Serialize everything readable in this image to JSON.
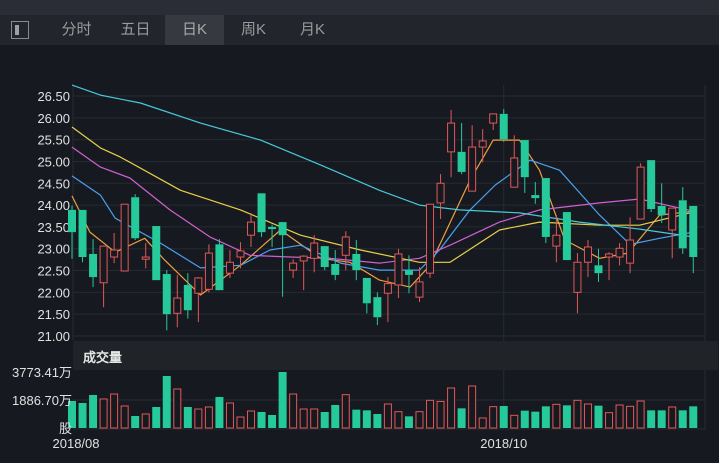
{
  "tabs": [
    {
      "label": "分时",
      "active": false
    },
    {
      "label": "五日",
      "active": false
    },
    {
      "label": "日K",
      "active": true
    },
    {
      "label": "周K",
      "active": false
    },
    {
      "label": "月K",
      "active": false
    }
  ],
  "panel_toggle_icon": "sidebar-toggle-icon",
  "volume_panel": {
    "title": "成交量",
    "max_label": "3773.41万",
    "mid_label": "1886.70万",
    "unit_label": "股"
  },
  "colors": {
    "up": "#e05858",
    "down": "#26c99a",
    "ma5": "#f0a040",
    "ma10": "#4aa0f0",
    "ma20": "#d060d0",
    "ma30": "#e8d048",
    "ma60": "#48c8d8",
    "bg": "#161a20",
    "grid": "#252a32"
  },
  "chart_data": {
    "type": "candlestick",
    "price_axis": {
      "ylim": [
        21.0,
        26.5
      ],
      "ticks": [
        "26.50",
        "26.00",
        "25.50",
        "25.00",
        "24.50",
        "24.00",
        "23.50",
        "23.00",
        "22.50",
        "22.00",
        "21.50",
        "21.00"
      ]
    },
    "x_labels": [
      {
        "label": "2018/08",
        "index": 0
      },
      {
        "label": "2018/10",
        "index": 41
      }
    ],
    "candles": [
      [
        23.89,
        23.99,
        22.77,
        23.38
      ],
      [
        23.89,
        23.89,
        22.69,
        22.81
      ],
      [
        22.88,
        23.22,
        22.12,
        22.35
      ],
      [
        22.22,
        23.06,
        21.66,
        23.06
      ],
      [
        22.81,
        23.36,
        22.67,
        22.97
      ],
      [
        22.49,
        24.02,
        22.49,
        24.02
      ],
      [
        24.18,
        24.25,
        23.2,
        23.24
      ],
      [
        22.76,
        23.13,
        22.55,
        22.81
      ],
      [
        23.52,
        23.52,
        22.28,
        22.28
      ],
      [
        22.42,
        22.51,
        21.13,
        21.5
      ],
      [
        21.52,
        22.4,
        21.2,
        21.87
      ],
      [
        22.17,
        22.44,
        21.4,
        21.59
      ],
      [
        21.98,
        22.35,
        21.32,
        22.33
      ],
      [
        22.07,
        23.1,
        22.0,
        22.9
      ],
      [
        23.1,
        23.22,
        22.05,
        22.05
      ],
      [
        22.44,
        22.97,
        22.33,
        22.69
      ],
      [
        22.81,
        23.15,
        22.55,
        22.95
      ],
      [
        23.31,
        23.82,
        23.04,
        23.61
      ],
      [
        24.27,
        24.27,
        23.27,
        23.38
      ],
      [
        23.5,
        23.55,
        23.04,
        23.45
      ],
      [
        23.61,
        23.61,
        21.9,
        23.31
      ],
      [
        22.51,
        22.76,
        22.33,
        22.67
      ],
      [
        22.72,
        22.85,
        22.05,
        22.83
      ],
      [
        22.78,
        23.31,
        22.46,
        23.13
      ],
      [
        23.06,
        23.06,
        22.51,
        22.58
      ],
      [
        22.65,
        22.97,
        22.28,
        22.4
      ],
      [
        22.85,
        23.4,
        22.51,
        23.27
      ],
      [
        22.88,
        23.2,
        22.28,
        22.51
      ],
      [
        22.33,
        22.33,
        21.52,
        21.75
      ],
      [
        21.89,
        22.0,
        21.25,
        21.43
      ],
      [
        21.98,
        22.35,
        21.32,
        22.2
      ],
      [
        22.17,
        23.0,
        21.87,
        22.88
      ],
      [
        22.51,
        22.85,
        21.98,
        22.4
      ],
      [
        21.89,
        22.58,
        21.78,
        22.24
      ],
      [
        22.44,
        24.02,
        22.33,
        24.02
      ],
      [
        24.05,
        24.71,
        23.68,
        24.5
      ],
      [
        25.22,
        26.18,
        24.64,
        25.88
      ],
      [
        25.22,
        25.88,
        24.71,
        24.76
      ],
      [
        24.32,
        25.83,
        24.32,
        25.33
      ],
      [
        25.33,
        25.74,
        24.98,
        25.47
      ],
      [
        25.88,
        26.09,
        25.72,
        26.09
      ],
      [
        26.09,
        26.2,
        25.45,
        25.51
      ],
      [
        24.41,
        25.6,
        24.41,
        25.08
      ],
      [
        25.49,
        25.49,
        24.28,
        24.64
      ],
      [
        24.23,
        24.53,
        24.03,
        24.16
      ],
      [
        24.62,
        24.62,
        23.13,
        23.27
      ],
      [
        23.06,
        23.77,
        22.69,
        23.31
      ],
      [
        23.84,
        23.84,
        22.74,
        22.74
      ],
      [
        22.0,
        22.9,
        21.52,
        22.69
      ],
      [
        22.69,
        23.2,
        22.35,
        23.04
      ],
      [
        22.62,
        23.0,
        22.24,
        22.44
      ],
      [
        22.81,
        22.92,
        22.28,
        22.88
      ],
      [
        22.81,
        23.13,
        22.62,
        23.01
      ],
      [
        22.67,
        23.72,
        22.44,
        23.2
      ],
      [
        23.68,
        24.96,
        23.68,
        24.87
      ],
      [
        25.03,
        25.03,
        23.84,
        23.91
      ],
      [
        23.98,
        24.5,
        23.59,
        23.77
      ],
      [
        23.43,
        23.93,
        22.78,
        23.93
      ],
      [
        24.11,
        24.41,
        22.88,
        23.01
      ],
      [
        23.98,
        23.98,
        22.44,
        22.81
      ]
    ],
    "candle_format": [
      "open",
      "high",
      "low",
      "close"
    ],
    "volume_unit": "万股",
    "volume_ylim": [
      0,
      3773.41
    ],
    "volumes": [
      1820,
      1685,
      2224,
      1955,
      2290,
      1483,
      809,
      944,
      1415,
      3505,
      2629,
      1415,
      1280,
      1415,
      2090,
      1685,
      741,
      1146,
      1078,
      876,
      3773,
      2290,
      1280,
      1280,
      1078,
      1550,
      2247,
      1236,
      1190,
      944,
      1618,
      1100,
      786,
      1100,
      1865,
      1790,
      2696,
      1326,
      2830,
      674,
      1438,
      1483,
      854,
      1168,
      1100,
      1460,
      1595,
      1528,
      1865,
      1618,
      1505,
      1034,
      1550,
      1460,
      1820,
      1190,
      1190,
      1415,
      1190,
      1460
    ],
    "moving_averages": [
      {
        "name": "MA5",
        "color_key": "ma5",
        "points": [
          [
            0,
            24.21
          ],
          [
            1.7,
            23.38
          ],
          [
            4.1,
            22.92
          ],
          [
            6.9,
            23.24
          ],
          [
            8.8,
            22.74
          ],
          [
            12.2,
            21.94
          ],
          [
            16,
            22.62
          ],
          [
            19.8,
            23.43
          ],
          [
            23.6,
            22.78
          ],
          [
            26.4,
            22.69
          ],
          [
            29.2,
            22.28
          ],
          [
            32.1,
            22.12
          ],
          [
            34,
            22.62
          ],
          [
            37.8,
            24.57
          ],
          [
            40,
            25.49
          ],
          [
            42.5,
            25.49
          ],
          [
            44.4,
            24.8
          ],
          [
            46.8,
            23.2
          ],
          [
            50.1,
            22.78
          ],
          [
            52.8,
            22.9
          ],
          [
            55.8,
            23.77
          ],
          [
            59,
            23.86
          ]
        ]
      },
      {
        "name": "MA10",
        "color_key": "ma10",
        "points": [
          [
            0,
            24.67
          ],
          [
            2.7,
            24.23
          ],
          [
            4.1,
            23.7
          ],
          [
            8.4,
            23.13
          ],
          [
            12.2,
            22.56
          ],
          [
            16,
            22.62
          ],
          [
            18.8,
            22.97
          ],
          [
            21.7,
            23.08
          ],
          [
            25.5,
            22.67
          ],
          [
            29.2,
            22.51
          ],
          [
            33,
            22.51
          ],
          [
            34.9,
            22.97
          ],
          [
            37.8,
            23.89
          ],
          [
            40.2,
            24.46
          ],
          [
            43.5,
            25.03
          ],
          [
            46.3,
            24.8
          ],
          [
            50.1,
            23.77
          ],
          [
            53,
            23.1
          ],
          [
            55.8,
            23.24
          ],
          [
            59,
            23.38
          ]
        ]
      },
      {
        "name": "MA20",
        "color_key": "ma20",
        "points": [
          [
            0,
            25.33
          ],
          [
            2.7,
            24.87
          ],
          [
            5.5,
            24.62
          ],
          [
            9.3,
            23.89
          ],
          [
            13.1,
            23.27
          ],
          [
            16.9,
            22.85
          ],
          [
            20.7,
            22.81
          ],
          [
            24.5,
            22.78
          ],
          [
            29.2,
            22.67
          ],
          [
            33,
            22.78
          ],
          [
            35.9,
            23.08
          ],
          [
            40.6,
            23.61
          ],
          [
            44.4,
            23.89
          ],
          [
            50.1,
            24.05
          ],
          [
            53.9,
            24.14
          ],
          [
            59,
            23.86
          ]
        ]
      },
      {
        "name": "MA30",
        "color_key": "ma30",
        "points": [
          [
            0,
            25.79
          ],
          [
            2.7,
            25.31
          ],
          [
            4.6,
            25.1
          ],
          [
            10.3,
            24.34
          ],
          [
            16,
            23.89
          ],
          [
            21.7,
            23.31
          ],
          [
            27.4,
            22.97
          ],
          [
            33,
            22.69
          ],
          [
            35.9,
            22.69
          ],
          [
            40.6,
            23.43
          ],
          [
            44.4,
            23.61
          ],
          [
            50.1,
            23.54
          ],
          [
            53.9,
            23.54
          ],
          [
            59,
            23.84
          ]
        ]
      },
      {
        "name": "MA60",
        "color_key": "ma60",
        "points": [
          [
            0,
            26.75
          ],
          [
            2.7,
            26.52
          ],
          [
            6.5,
            26.34
          ],
          [
            12.2,
            25.88
          ],
          [
            17.9,
            25.49
          ],
          [
            23.6,
            24.92
          ],
          [
            29.2,
            24.34
          ],
          [
            33,
            24.0
          ],
          [
            36.8,
            23.89
          ],
          [
            42.5,
            23.82
          ],
          [
            48.2,
            23.61
          ],
          [
            53.9,
            23.45
          ],
          [
            59,
            23.27
          ]
        ]
      }
    ]
  }
}
